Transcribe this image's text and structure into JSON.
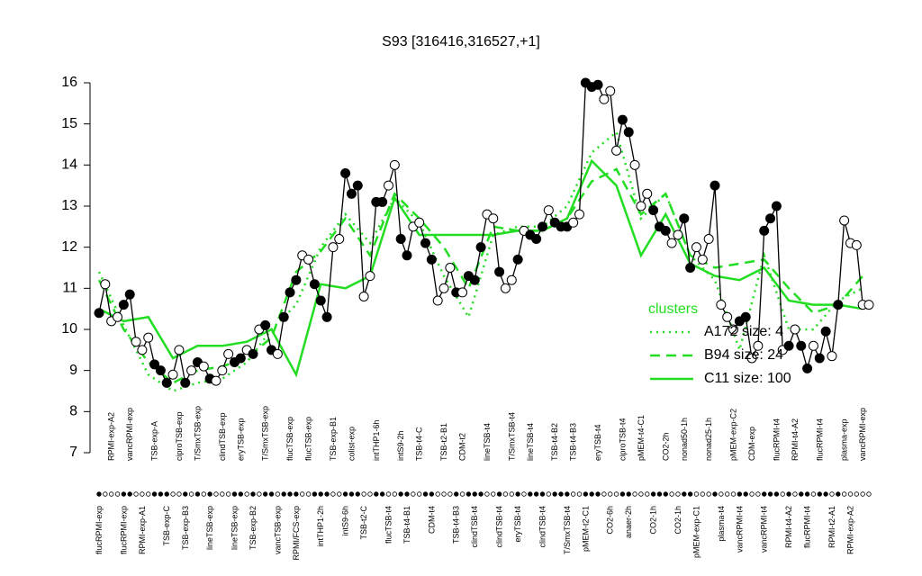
{
  "chart_data": {
    "type": "line",
    "title": "S93 [316416,316527,+1]",
    "categories": [
      "flucRPMI-exp",
      null,
      "RPMI-exp-A2",
      null,
      "flucRPMI-exp",
      "vancRPMI-exp",
      null,
      "RPMI-exp-A1",
      null,
      "TSB-exp-A",
      null,
      "TSB-exp-C",
      null,
      "ciproTSB-exp",
      "TSB-exp-B3",
      null,
      "T/SmxTSB-exp",
      null,
      "lineTSB-exp",
      null,
      "clindTSB-exp",
      null,
      "lineTSB-exp",
      "eryTSB-exp",
      null,
      "TSB-exp-B2",
      null,
      "T/SmxTSB-exp",
      null,
      "vancTSB-exp",
      null,
      "flucTSB-exp",
      "RPMI/FCS-exp",
      null,
      "flucTSB-exp",
      null,
      "intTHP1-2h",
      null,
      "TSB-exp-B1",
      null,
      "intS9-6h",
      "colist-exp",
      null,
      "TSB-t2-C",
      null,
      "intTHP1-6h",
      null,
      "flucTSB-t4",
      null,
      "intS9-2h",
      "TSB-t4-B1",
      null,
      "TSB-t4-C",
      null,
      "CDM-t4",
      null,
      "TSB-t2-B1",
      null,
      "TSB-t4-B3",
      "CDM-t2",
      null,
      "clindTSB-t4",
      null,
      "lineTSB-t4",
      null,
      "clindTSB-t4",
      null,
      "T/SmxTSB-t4",
      "eryTSB-t4",
      null,
      "lineTSB-t4",
      null,
      "clindTSB-t4",
      null,
      "TSB-t4-B2",
      null,
      "T/SmxTSB-t4",
      "TSB-t4-B3",
      null,
      "pMEM-t2-C1",
      null,
      "eryTSB-t4",
      null,
      "CO2-6h",
      null,
      "ciproTSB-t4",
      "anaer-2h",
      null,
      "pMEM-t4-C1",
      null,
      "CO2-1h",
      null,
      "CO2-2h",
      null,
      "CO2-1h",
      "nonad50-1h",
      null,
      "pMEM-exp-C1",
      null,
      "nonad25-1h",
      null,
      "plasma-t4",
      null,
      "pMEM-exp-C2",
      "vancRPMI-t4",
      null,
      "CDM-exp",
      null,
      "vancRPMI-t4",
      null,
      "flucRPMI-t4",
      null,
      "RPMI-t4-A2",
      "RPMI-t4-A2",
      null,
      "flucRPMI-t4",
      null,
      "flucRPMI-t4",
      null,
      "RPMI-t2-A1",
      null,
      "plasma-exp",
      "RPMI-exp-A2",
      null,
      "vancRPMI-exp",
      null
    ],
    "values": [
      10.4,
      11.1,
      10.2,
      10.3,
      10.6,
      10.85,
      9.7,
      9.5,
      9.8,
      9.15,
      9.0,
      8.7,
      8.9,
      9.5,
      8.7,
      9.0,
      9.2,
      9.1,
      8.8,
      8.75,
      9.0,
      9.4,
      9.2,
      9.3,
      9.5,
      9.4,
      10.0,
      10.1,
      9.5,
      9.4,
      10.3,
      10.9,
      11.2,
      11.8,
      11.7,
      11.1,
      10.7,
      10.3,
      12.0,
      12.2,
      13.8,
      13.3,
      13.5,
      10.8,
      11.3,
      13.1,
      13.1,
      13.5,
      14.0,
      12.2,
      11.8,
      12.5,
      12.6,
      12.1,
      11.7,
      10.7,
      11.0,
      11.5,
      10.9,
      10.9,
      11.3,
      11.2,
      12.0,
      12.8,
      12.7,
      11.4,
      11.0,
      11.2,
      11.7,
      12.4,
      12.3,
      12.2,
      12.5,
      12.9,
      12.6,
      12.5,
      12.5,
      12.6,
      12.8,
      16.0,
      15.9,
      15.95,
      15.6,
      15.8,
      14.35,
      15.1,
      14.8,
      14.0,
      13.0,
      13.3,
      12.9,
      12.5,
      12.4,
      12.1,
      12.3,
      12.7,
      11.5,
      12.0,
      11.7,
      12.2,
      13.5,
      10.6,
      10.3,
      10.0,
      10.2,
      10.3,
      9.3,
      9.6,
      12.4,
      12.7,
      13.0,
      9.5,
      9.6,
      10.0,
      9.6,
      9.05,
      9.6,
      9.3,
      9.95,
      9.35,
      10.6,
      12.65,
      12.1,
      12.05,
      10.6,
      10.6
    ],
    "filled": [
      true,
      false,
      false,
      false,
      true,
      true,
      false,
      false,
      false,
      true,
      true,
      true,
      false,
      false,
      true,
      false,
      true,
      false,
      true,
      false,
      false,
      false,
      true,
      true,
      false,
      true,
      false,
      true,
      true,
      false,
      true,
      true,
      true,
      false,
      false,
      true,
      true,
      true,
      false,
      false,
      true,
      true,
      true,
      false,
      false,
      true,
      true,
      false,
      false,
      true,
      true,
      false,
      false,
      true,
      true,
      false,
      false,
      false,
      true,
      false,
      true,
      true,
      true,
      false,
      false,
      true,
      false,
      false,
      true,
      false,
      true,
      true,
      true,
      false,
      true,
      true,
      true,
      false,
      false,
      true,
      true,
      true,
      false,
      false,
      false,
      true,
      true,
      false,
      false,
      false,
      true,
      true,
      true,
      false,
      false,
      true,
      true,
      false,
      false,
      false,
      true,
      false,
      false,
      false,
      true,
      true,
      false,
      false,
      true,
      true,
      true,
      false,
      true,
      false,
      true,
      true,
      false,
      true,
      true,
      false,
      true,
      false,
      false,
      false,
      false,
      false
    ],
    "color": "#000000",
    "legend_title": "clusters",
    "series": [
      {
        "name": "A172 size: 4",
        "color": "#22dd22",
        "style": "dotted",
        "x": [
          1,
          5,
          9,
          13,
          17,
          21,
          25,
          29,
          33,
          37,
          41,
          45,
          49,
          53,
          57,
          61,
          65,
          69,
          73,
          77,
          81,
          85,
          89,
          93,
          97,
          101,
          105,
          109,
          113,
          117,
          121,
          125
        ],
        "values": [
          11.4,
          10.1,
          8.9,
          8.5,
          8.7,
          8.8,
          9.2,
          10.0,
          10.6,
          12.0,
          12.8,
          12.1,
          13.2,
          12.6,
          11.3,
          10.3,
          12.3,
          12.5,
          12.5,
          13.0,
          14.3,
          14.8,
          12.7,
          13.3,
          11.8,
          11.2,
          9.5,
          11.8,
          10.0,
          10.0,
          10.7,
          11.0
        ]
      },
      {
        "name": "B94 size: 24",
        "color": "#22dd22",
        "style": "dashed",
        "x": [
          1,
          5,
          9,
          13,
          17,
          21,
          25,
          29,
          33,
          37,
          41,
          45,
          49,
          53,
          57,
          61,
          65,
          69,
          73,
          77,
          81,
          85,
          89,
          93,
          97,
          101,
          105,
          109,
          113,
          117,
          121,
          125
        ],
        "values": [
          11.2,
          10.0,
          9.2,
          8.7,
          9.0,
          9.1,
          9.3,
          9.8,
          11.4,
          11.9,
          12.7,
          11.8,
          13.3,
          12.7,
          12.0,
          11.0,
          12.5,
          12.4,
          12.4,
          12.7,
          13.6,
          13.9,
          12.8,
          13.3,
          11.8,
          11.5,
          11.6,
          11.7,
          11.0,
          10.4,
          10.6,
          11.3
        ]
      },
      {
        "name": "C11 size: 100",
        "color": "#22dd22",
        "style": "solid",
        "x": [
          1,
          5,
          9,
          13,
          17,
          21,
          25,
          29,
          33,
          37,
          41,
          45,
          49,
          53,
          57,
          61,
          65,
          69,
          73,
          77,
          81,
          85,
          89,
          93,
          97,
          101,
          105,
          109,
          113,
          117,
          121,
          125
        ],
        "values": [
          10.5,
          10.2,
          10.3,
          9.3,
          9.6,
          9.6,
          9.7,
          10.0,
          8.9,
          11.1,
          11.0,
          11.3,
          13.2,
          12.3,
          12.3,
          12.3,
          12.3,
          12.4,
          12.4,
          12.7,
          14.1,
          13.5,
          11.8,
          12.8,
          11.6,
          11.3,
          11.2,
          11.5,
          10.7,
          10.6,
          10.6,
          10.5
        ]
      }
    ],
    "ylim": [
      7,
      16
    ],
    "yticks": [
      7,
      8,
      9,
      10,
      11,
      12,
      13,
      14,
      15,
      16
    ]
  }
}
